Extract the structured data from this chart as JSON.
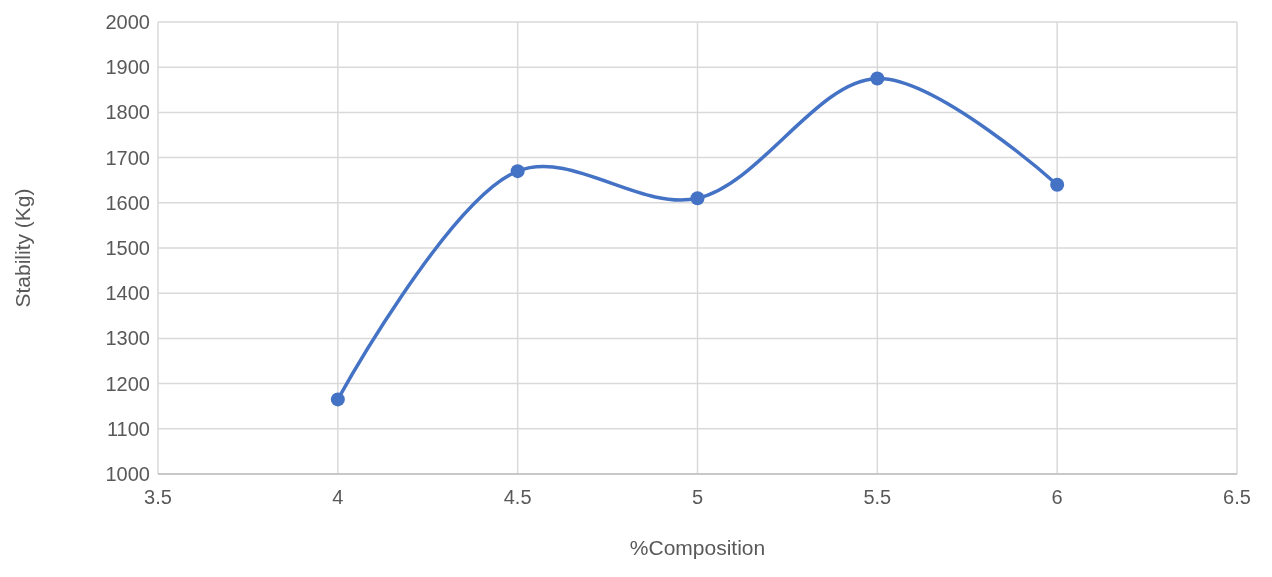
{
  "chart_data": {
    "type": "line",
    "xlabel": "%Composition",
    "ylabel": "Stability (Kg)",
    "x": [
      4,
      4.5,
      5,
      5.5,
      6
    ],
    "series": [
      {
        "color": "#4472c4",
        "values": [
          1165,
          1670,
          1610,
          1875,
          1640
        ]
      }
    ],
    "xlim": [
      3.5,
      6.5
    ],
    "xticks": [
      3.5,
      4,
      4.5,
      5,
      5.5,
      6,
      6.5
    ],
    "ylim": [
      1000,
      2000
    ],
    "yticks": [
      1000,
      1100,
      1200,
      1300,
      1400,
      1500,
      1600,
      1700,
      1800,
      1900,
      2000
    ],
    "grid": true,
    "marker": "circle",
    "line_style": "solid"
  }
}
